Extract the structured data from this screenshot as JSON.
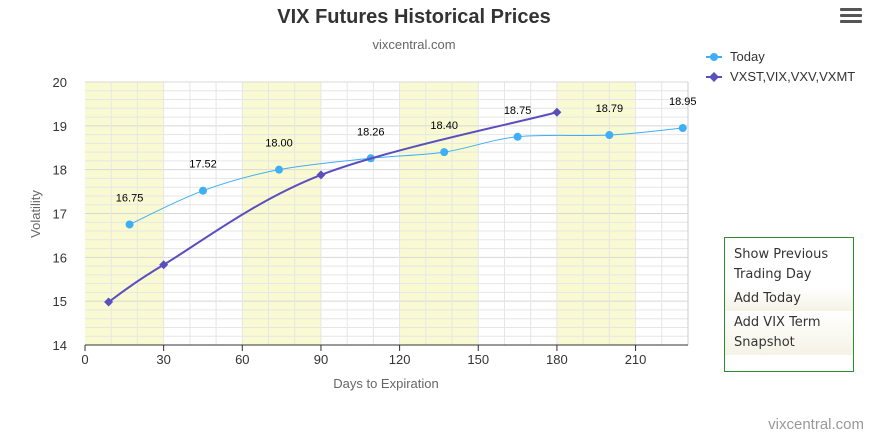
{
  "header": {
    "title": "VIX Futures Historical Prices",
    "subtitle": "vixcentral.com",
    "menu_icon": "hamburger-menu-icon"
  },
  "credit": "vixcentral.com",
  "side_panel": {
    "items": [
      {
        "label": "Show Previous Trading Day"
      },
      {
        "label": "Add Today"
      },
      {
        "label": "Add VIX Term Snapshot"
      }
    ]
  },
  "colors": {
    "today": "#3eaef5",
    "term": "#5a4fbd",
    "band": "#fafad2",
    "panel_border": "#2e8b2e"
  },
  "chart_data": {
    "type": "line",
    "title": "VIX Futures Historical Prices",
    "subtitle": "vixcentral.com",
    "xlabel": "Days to Expiration",
    "ylabel": "Volatility",
    "xlim": [
      0,
      230
    ],
    "ylim": [
      14,
      20
    ],
    "x_ticks": [
      "0",
      "30",
      "60",
      "90",
      "120",
      "150",
      "180",
      "210"
    ],
    "y_ticks": [
      "14",
      "15",
      "16",
      "17",
      "18",
      "19",
      "20"
    ],
    "bands": [
      [
        0,
        30
      ],
      [
        60,
        90
      ],
      [
        120,
        150
      ],
      [
        180,
        210
      ]
    ],
    "grid": true,
    "legend_position": "top-right",
    "series": [
      {
        "name": "Today",
        "marker": "circle",
        "x": [
          17,
          45,
          74,
          109,
          137,
          165,
          200,
          228
        ],
        "y": [
          16.75,
          17.52,
          18.0,
          18.26,
          18.4,
          18.75,
          18.79,
          18.95
        ],
        "labels": [
          "16.75",
          "17.52",
          "18.00",
          "18.26",
          "18.40",
          "18.75",
          "18.79",
          "18.95"
        ]
      },
      {
        "name": "VXST,VIX,VXV,VXMT",
        "marker": "diamond",
        "x": [
          9,
          30,
          90,
          180
        ],
        "y": [
          14.98,
          15.83,
          17.88,
          19.31
        ]
      }
    ]
  }
}
